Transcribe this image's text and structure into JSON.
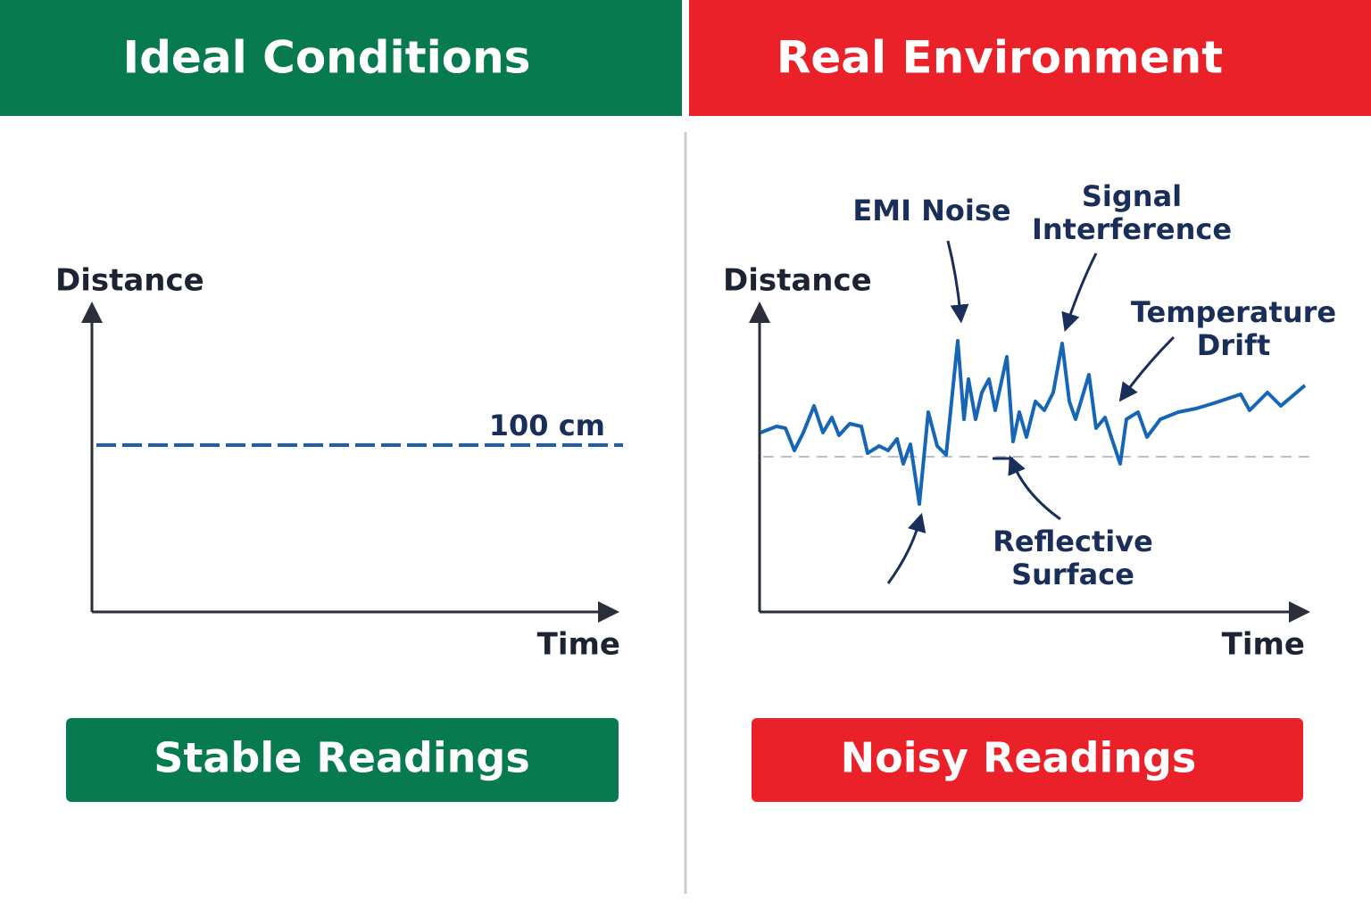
{
  "left": {
    "header": "Ideal Conditions",
    "y_label": "Distance",
    "x_label": "Time",
    "line_label": "100 cm",
    "footer": "Stable Readings"
  },
  "right": {
    "header": "Real Environment",
    "y_label": "Distance",
    "x_label": "Time",
    "annotations": [
      [
        "EMI Noise"
      ],
      [
        "Signal",
        "Interference"
      ],
      [
        "Temperature",
        "Drift"
      ],
      [
        "Reflective",
        "Surface"
      ]
    ],
    "footer": "Noisy Readings"
  }
}
